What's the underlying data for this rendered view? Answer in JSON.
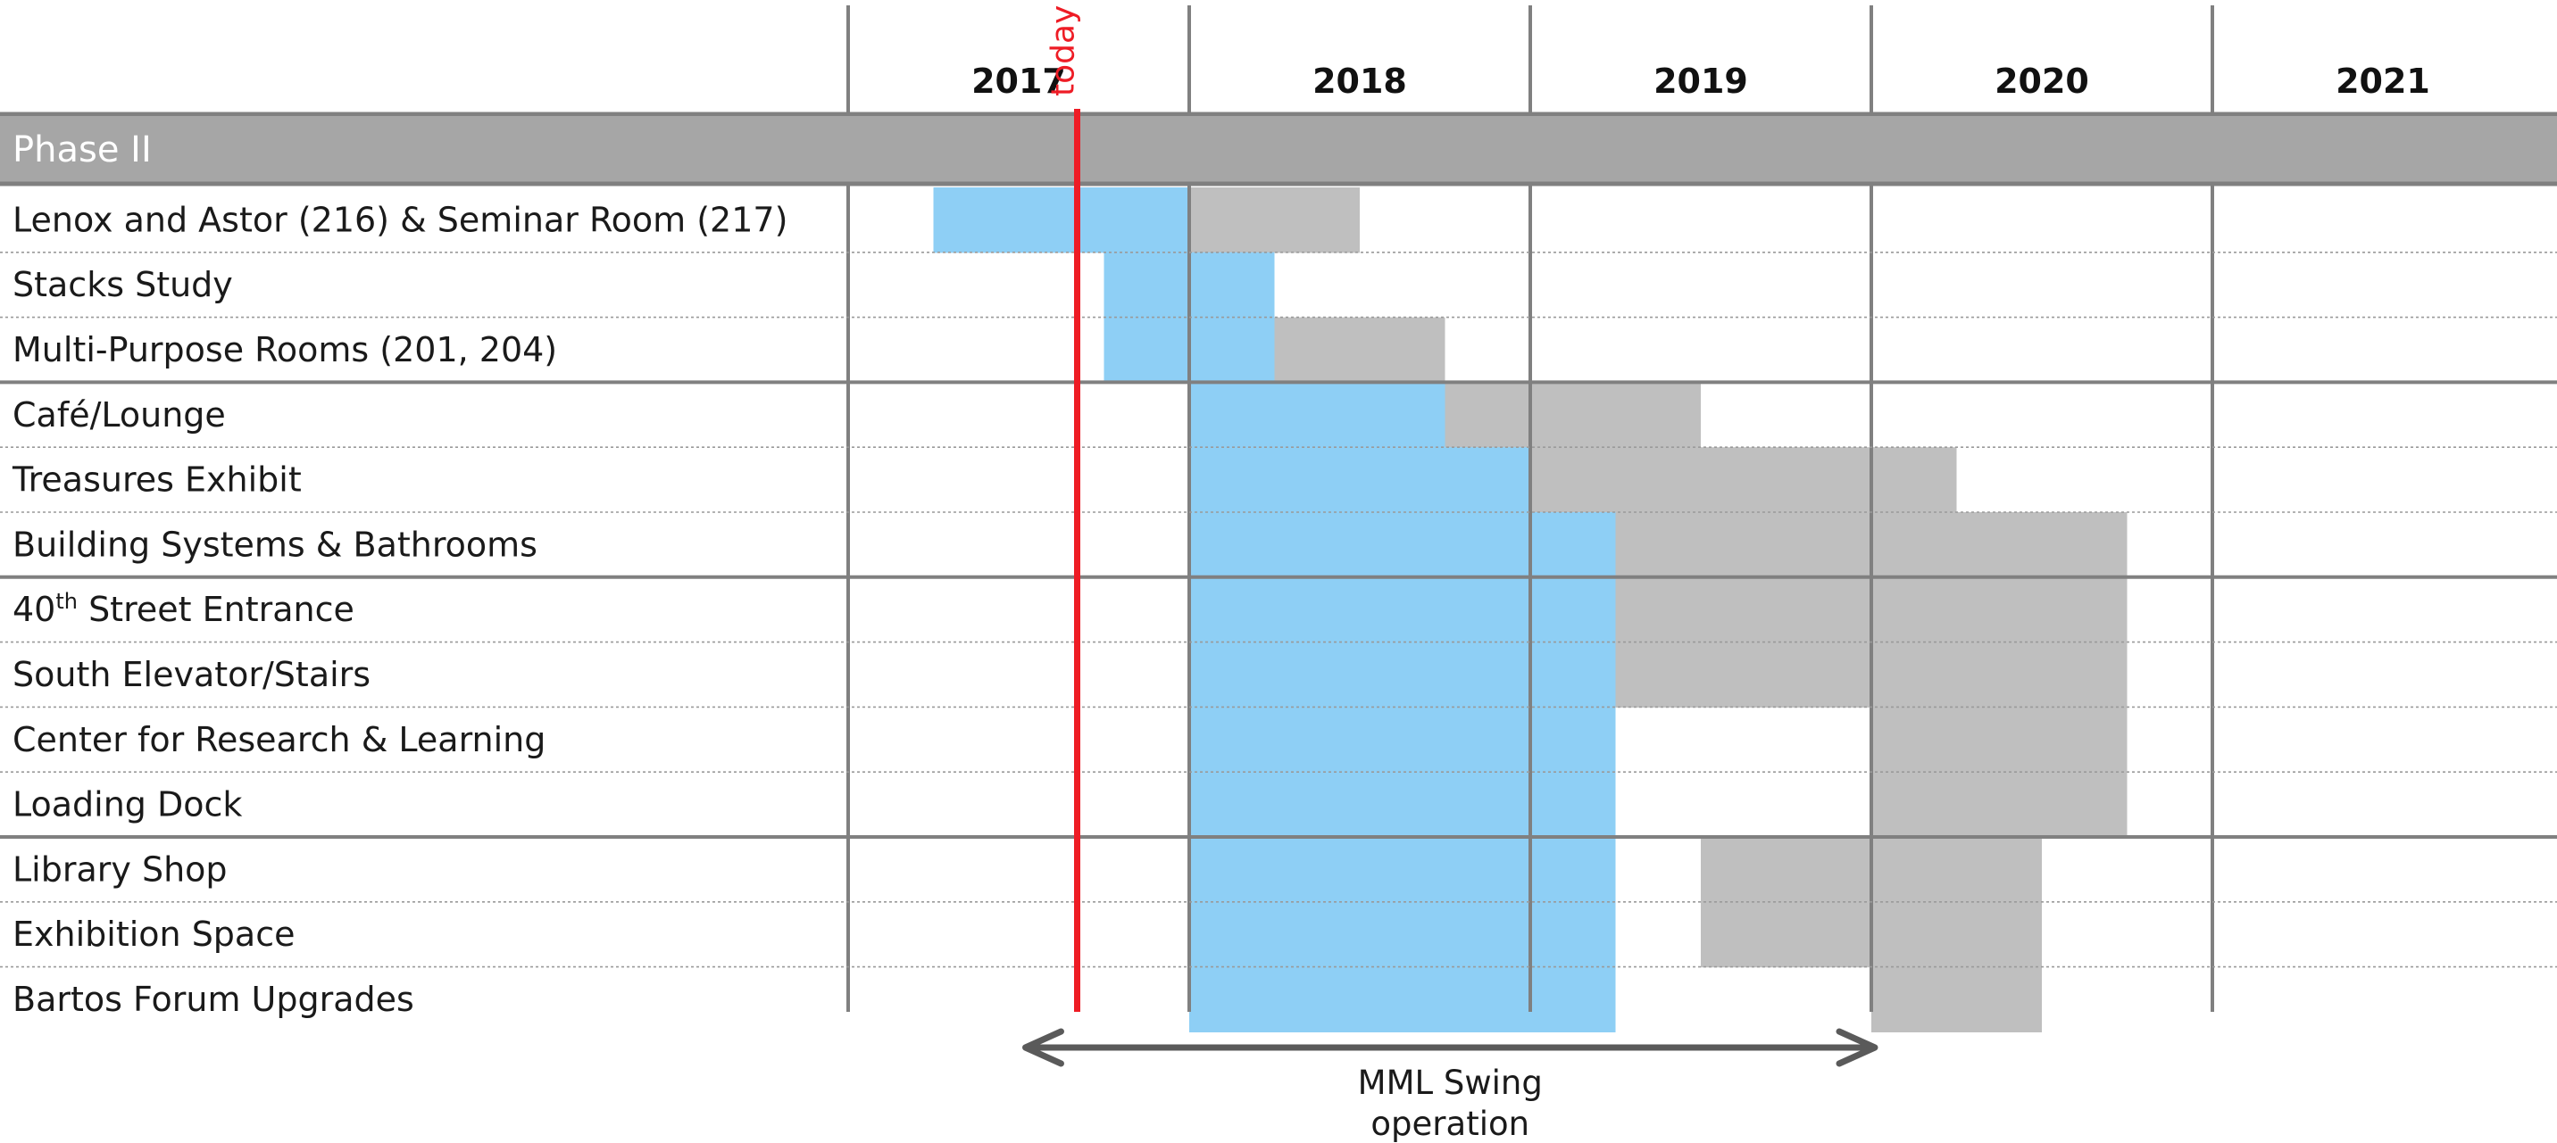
{
  "chart_data": {
    "type": "gantt",
    "years": [
      "2017",
      "2018",
      "2019",
      "2020",
      "2021"
    ],
    "today": {
      "label": "today",
      "date": 2017.75
    },
    "phase": "Phase II",
    "rows": [
      {
        "label": "Lenox and Astor (216) & Seminar Room (217)",
        "blue": [
          2017.25,
          2018.0
        ],
        "gray": [
          2018.0,
          2018.5
        ]
      },
      {
        "label": "Stacks Study",
        "blue": [
          2017.75,
          2018.25
        ],
        "gray": null
      },
      {
        "label": "Multi-Purpose Rooms (201, 204)",
        "blue": [
          2017.75,
          2018.25
        ],
        "gray": [
          2018.25,
          2018.75
        ]
      },
      {
        "label": "Café/Lounge",
        "blue": [
          2018.0,
          2018.75
        ],
        "gray": [
          2018.75,
          2019.5
        ]
      },
      {
        "label": "Treasures Exhibit",
        "blue": [
          2018.0,
          2019.0
        ],
        "gray": [
          2019.0,
          2020.25
        ]
      },
      {
        "label": "Building Systems & Bathrooms",
        "blue": [
          2018.0,
          2019.25
        ],
        "gray": [
          2019.25,
          2020.75
        ]
      },
      {
        "label": "40th Street Entrance",
        "label_base": "40",
        "label_sup": "th",
        "label_rest": " Street Entrance",
        "blue": [
          2018.0,
          2019.25
        ],
        "gray": [
          2019.25,
          2020.75
        ]
      },
      {
        "label": "South Elevator/Stairs",
        "blue": [
          2018.0,
          2019.25
        ],
        "gray": [
          2019.25,
          2020.75
        ]
      },
      {
        "label": "Center for Research & Learning",
        "blue": [
          2018.0,
          2019.25
        ],
        "gray": [
          2020.0,
          2020.75
        ]
      },
      {
        "label": "Loading Dock",
        "blue": [
          2018.0,
          2019.25
        ],
        "gray": [
          2020.0,
          2020.75
        ]
      },
      {
        "label": "Library Shop",
        "blue": [
          2018.0,
          2019.25
        ],
        "gray": [
          2019.5,
          2020.5
        ]
      },
      {
        "label": "Exhibition Space",
        "blue": [
          2018.0,
          2019.25
        ],
        "gray": [
          2019.5,
          2020.5
        ]
      },
      {
        "label": "Bartos Forum Upgrades",
        "blue": [
          2018.0,
          2019.25
        ],
        "gray": [
          2020.0,
          2020.5
        ]
      }
    ],
    "group_breaks_after": [
      2,
      5,
      9
    ],
    "swing": {
      "label_line1": "MML Swing",
      "label_line2": "operation",
      "start": 2017.75,
      "end": 2020.0
    },
    "colors": {
      "blue": "#8ecff5",
      "gray": "#bfbfbf",
      "phase_band": "#a6a6a6",
      "grid": "#808080",
      "today": "#ee1c25",
      "arrow": "#5a5a5a"
    }
  }
}
